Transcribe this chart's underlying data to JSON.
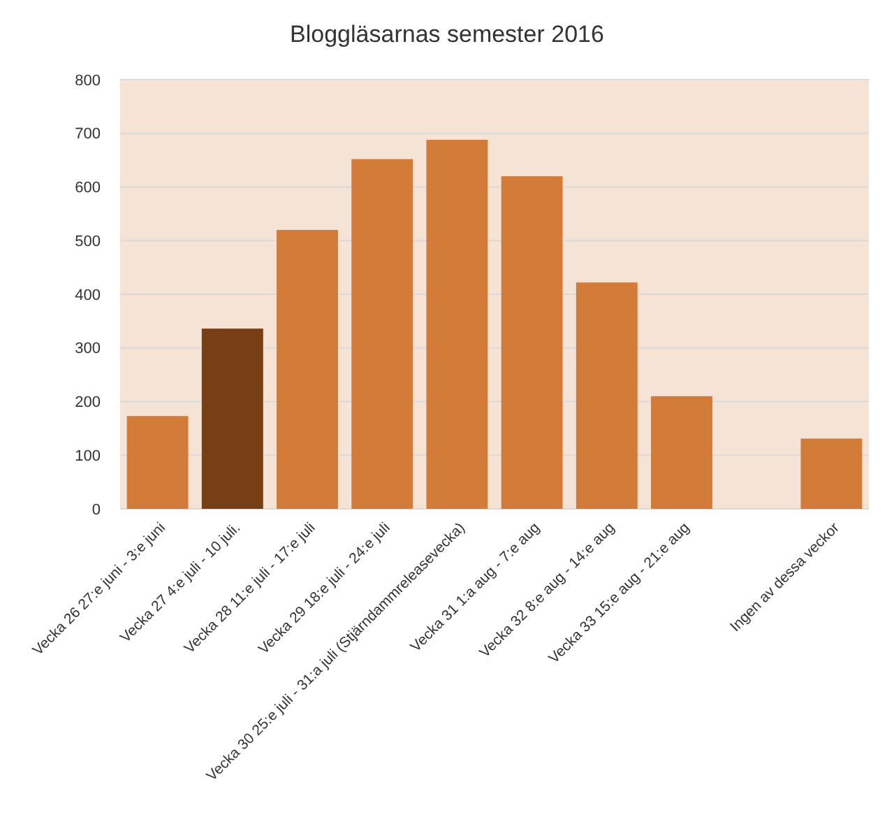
{
  "chart_data": {
    "type": "bar",
    "title": "Bloggläsarnas semester 2016",
    "categories": [
      "Vecka 26 27:e juni - 3:e juni",
      "Vecka 27 4:e juli - 10 juli.",
      "Vecka 28 11:e juli - 17:e juli",
      "Vecka 29 18:e juli - 24:e juli",
      "Vecka 30 25:e juli - 31:a juli (Stjärndammreleasevecka)",
      "Vecka 31 1:a aug - 7:e aug",
      "Vecka 32 8:e aug - 14:e aug",
      "Vecka 33 15:e aug - 21:e aug",
      null,
      "Ingen av dessa veckor"
    ],
    "values": [
      173,
      336,
      520,
      652,
      688,
      620,
      422,
      210,
      null,
      131
    ],
    "colors": [
      "#d37c3a",
      "#763f16",
      "#d37c3a",
      "#d37c3a",
      "#d37c3a",
      "#d37c3a",
      "#d37c3a",
      "#d37c3a",
      null,
      "#d37c3a"
    ],
    "ylim": [
      0,
      800
    ],
    "yticks": [
      0,
      100,
      200,
      300,
      400,
      500,
      600,
      700,
      800
    ],
    "grid": "y"
  }
}
